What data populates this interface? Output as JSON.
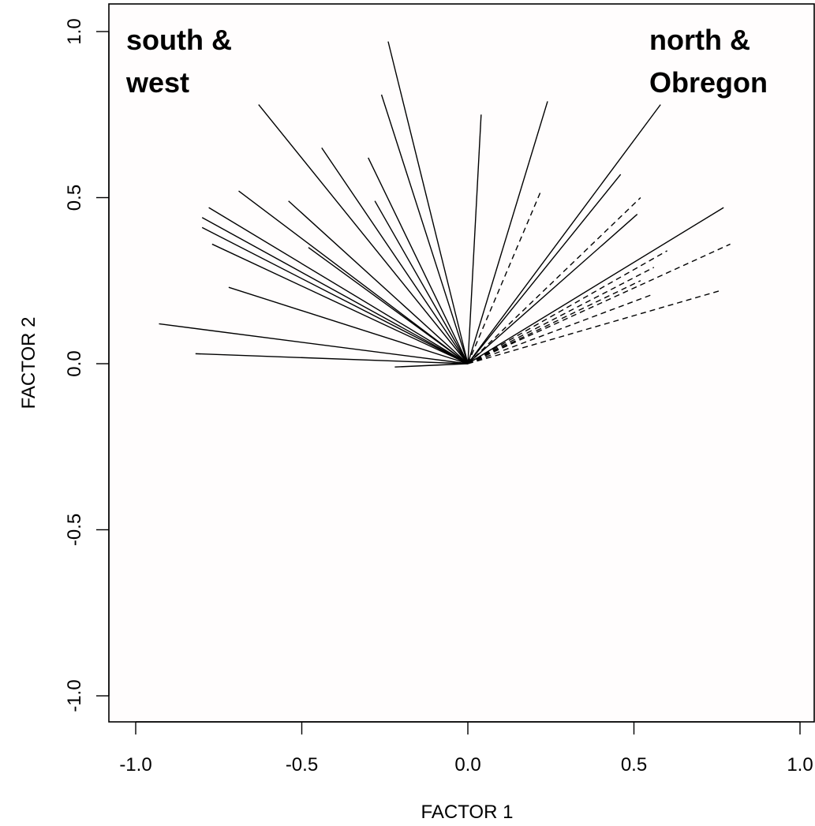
{
  "chart_data": {
    "type": "line",
    "title": "",
    "xlabel": "FACTOR 1",
    "ylabel": "FACTOR 2",
    "xlim": [
      -1.08,
      1.03
    ],
    "ylim": [
      -1.08,
      1.08
    ],
    "x_ticks": [
      -1.0,
      -0.5,
      0.0,
      0.5,
      1.0
    ],
    "x_tick_labels": [
      "-1.0",
      "-0.5",
      "0.0",
      "0.5",
      "1.0"
    ],
    "y_ticks": [
      -1.0,
      -0.5,
      0.0,
      0.5,
      1.0
    ],
    "y_tick_labels": [
      "-1.0",
      "-0.5",
      "0.0",
      "0.5",
      "1.0"
    ],
    "grid": false,
    "legend": "none",
    "origin": [
      0.0,
      0.0
    ],
    "annotations": [
      {
        "lines": [
          "south &",
          "west"
        ],
        "position": "top-left"
      },
      {
        "lines": [
          "north &",
          "Obregon"
        ],
        "position": "top-right"
      }
    ],
    "series": [
      {
        "style": "solid",
        "endpoints": [
          [
            -0.24,
            0.97
          ],
          [
            -0.26,
            0.81
          ],
          [
            0.04,
            0.75
          ],
          [
            0.24,
            0.79
          ],
          [
            -0.63,
            0.78
          ],
          [
            0.58,
            0.78
          ],
          [
            -0.44,
            0.65
          ],
          [
            -0.3,
            0.62
          ],
          [
            -0.69,
            0.52
          ],
          [
            -0.28,
            0.49
          ],
          [
            -0.54,
            0.49
          ],
          [
            0.46,
            0.57
          ],
          [
            -0.78,
            0.47
          ],
          [
            -0.8,
            0.44
          ],
          [
            -0.8,
            0.41
          ],
          [
            -0.77,
            0.36
          ],
          [
            -0.48,
            0.35
          ],
          [
            0.51,
            0.45
          ],
          [
            0.77,
            0.47
          ],
          [
            -0.72,
            0.23
          ],
          [
            -0.93,
            0.12
          ],
          [
            -0.82,
            0.03
          ],
          [
            -0.22,
            -0.01
          ]
        ]
      },
      {
        "style": "dashed",
        "endpoints": [
          [
            0.22,
            0.52
          ],
          [
            0.52,
            0.5
          ],
          [
            0.79,
            0.36
          ],
          [
            0.6,
            0.34
          ],
          [
            0.56,
            0.29
          ],
          [
            0.52,
            0.25
          ],
          [
            0.56,
            0.21
          ],
          [
            0.76,
            0.22
          ]
        ]
      }
    ]
  }
}
